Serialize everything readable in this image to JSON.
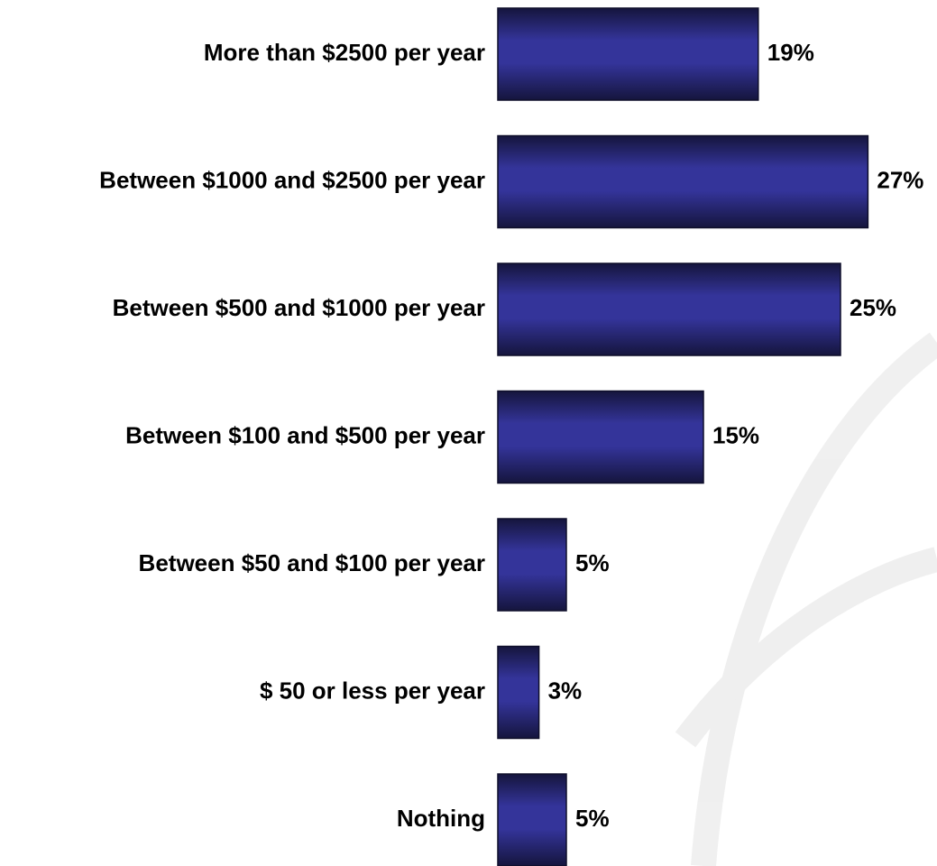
{
  "chart_data": {
    "type": "bar",
    "orientation": "horizontal",
    "categories": [
      "More than $2500 per year",
      "Between $1000 and $2500 per year",
      "Between $500 and $1000 per year",
      "Between $100 and $500 per year",
      "Between $50 and $100 per year",
      "$ 50 or less per year",
      "Nothing"
    ],
    "values": [
      19,
      27,
      25,
      15,
      5,
      3,
      5
    ],
    "value_labels": [
      "19%",
      "27%",
      "25%",
      "15%",
      "5%",
      "3%",
      "5%"
    ],
    "color": "#34349a"
  }
}
